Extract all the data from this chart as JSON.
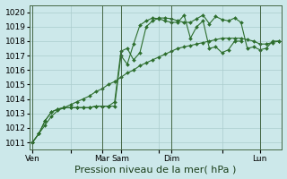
{
  "bg_color": "#cce8ea",
  "grid_color": "#aacccc",
  "line_color": "#2d6e2d",
  "marker_color": "#2d6e2d",
  "xlabel": "Pression niveau de la mer( hPa )",
  "xlabel_fontsize": 8,
  "tick_fontsize": 6.5,
  "ylim": [
    1010.5,
    1020.5
  ],
  "yticks": [
    1011,
    1012,
    1013,
    1014,
    1015,
    1016,
    1017,
    1018,
    1019,
    1020
  ],
  "day_labels": [
    "Ven",
    "",
    "Mar",
    "Sam",
    "",
    "Dim",
    "",
    "Lun"
  ],
  "day_positions": [
    0,
    6,
    11,
    14,
    20,
    22,
    30,
    36
  ],
  "vline_positions": [
    0,
    11,
    14,
    22,
    36
  ],
  "xlim": [
    -0.5,
    39.5
  ],
  "series": [
    {
      "x": [
        0,
        1,
        2,
        3,
        4,
        5,
        6,
        7,
        8,
        9,
        10,
        11,
        12,
        13,
        14,
        15,
        16,
        17,
        18,
        19,
        20,
        21,
        22,
        23,
        24,
        25,
        26,
        27,
        28,
        29,
        30,
        31,
        32,
        33,
        34,
        35,
        36,
        37,
        38,
        39
      ],
      "y": [
        1011.0,
        1011.6,
        1012.5,
        1013.1,
        1013.3,
        1013.4,
        1013.4,
        1013.4,
        1013.4,
        1013.4,
        1013.5,
        1013.5,
        1013.5,
        1013.8,
        1017.3,
        1017.5,
        1016.7,
        1017.2,
        1019.0,
        1019.4,
        1019.6,
        1019.6,
        1019.55,
        1019.4,
        1019.3,
        1019.3,
        1019.55,
        1019.8,
        1019.2,
        1019.7,
        1019.5,
        1019.4,
        1019.6,
        1019.3,
        1017.5,
        1017.6,
        1017.4,
        1017.5,
        1018.0,
        1018.0
      ]
    },
    {
      "x": [
        0,
        1,
        2,
        3,
        4,
        5,
        6,
        7,
        8,
        9,
        10,
        11,
        12,
        13,
        14,
        15,
        16,
        17,
        18,
        19,
        20,
        21,
        22,
        23,
        24,
        25,
        26,
        27,
        28,
        29,
        30,
        31,
        32,
        33
      ],
      "y": [
        1011.0,
        1011.6,
        1012.5,
        1013.1,
        1013.3,
        1013.4,
        1013.4,
        1013.4,
        1013.4,
        1013.4,
        1013.5,
        1013.5,
        1013.5,
        1013.5,
        1017.0,
        1016.4,
        1017.8,
        1019.1,
        1019.4,
        1019.6,
        1019.55,
        1019.4,
        1019.3,
        1019.3,
        1019.8,
        1018.2,
        1019.0,
        1019.4,
        1017.5,
        1017.6,
        1017.2,
        1017.4,
        1018.0,
        1018.0
      ]
    },
    {
      "x": [
        0,
        1,
        2,
        3,
        4,
        5,
        6,
        7,
        8,
        9,
        10,
        11,
        12,
        13,
        14,
        15,
        16,
        17,
        18,
        19,
        20,
        21,
        22,
        23,
        24,
        25,
        26,
        27,
        28,
        29,
        30,
        31,
        32,
        33,
        34,
        35,
        36,
        37,
        38,
        39
      ],
      "y": [
        1011.0,
        1011.6,
        1012.2,
        1012.8,
        1013.2,
        1013.4,
        1013.6,
        1013.8,
        1014.0,
        1014.2,
        1014.5,
        1014.7,
        1015.0,
        1015.2,
        1015.5,
        1015.8,
        1016.0,
        1016.3,
        1016.5,
        1016.7,
        1016.9,
        1017.1,
        1017.3,
        1017.5,
        1017.6,
        1017.7,
        1017.8,
        1017.9,
        1018.0,
        1018.1,
        1018.2,
        1018.2,
        1018.2,
        1018.2,
        1018.1,
        1018.0,
        1017.8,
        1017.8,
        1017.9,
        1018.0
      ]
    }
  ]
}
